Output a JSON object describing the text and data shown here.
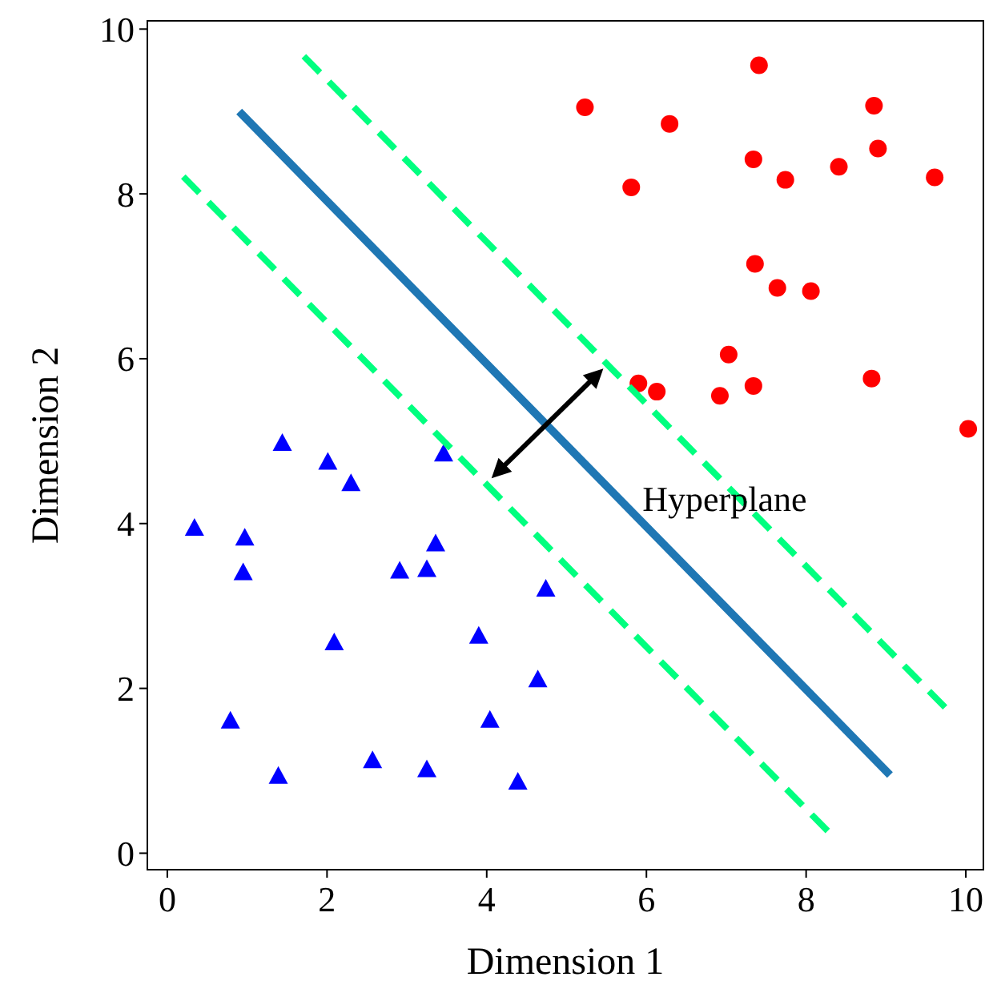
{
  "chart_data": {
    "type": "scatter",
    "xlabel": "Dimension 1",
    "ylabel": "Dimension 2",
    "xlim": [
      -0.25,
      10.22
    ],
    "ylim": [
      -0.2,
      10.1
    ],
    "xticks": [
      0,
      2,
      4,
      6,
      8,
      10
    ],
    "yticks": [
      0,
      2,
      4,
      6,
      8,
      10
    ],
    "grid": false,
    "annotations": [
      {
        "text": "Hyperplane",
        "x": 5.95,
        "y": 4.15
      }
    ],
    "series": [
      {
        "color": "#ff0000",
        "marker": "circle",
        "x": [
          7.41,
          5.23,
          8.85,
          6.29,
          7.34,
          8.9,
          7.74,
          8.41,
          9.61,
          5.81,
          7.36,
          7.64,
          8.06,
          7.03,
          5.9,
          6.13,
          6.92,
          7.34,
          8.82,
          10.03
        ],
        "values": [
          9.56,
          9.05,
          9.07,
          8.85,
          8.42,
          8.55,
          8.17,
          8.33,
          8.2,
          8.08,
          7.15,
          6.86,
          6.82,
          6.05,
          5.7,
          5.6,
          5.55,
          5.67,
          5.76,
          5.15
        ]
      },
      {
        "color": "#0000ff",
        "marker": "triangle",
        "x": [
          1.44,
          2.01,
          2.3,
          3.46,
          0.34,
          0.97,
          0.95,
          3.36,
          2.91,
          3.25,
          4.74,
          2.09,
          3.9,
          4.64,
          0.79,
          4.04,
          2.57,
          1.39,
          3.25,
          4.39
        ],
        "values": [
          4.97,
          4.74,
          4.48,
          4.84,
          3.94,
          3.82,
          3.4,
          3.75,
          3.42,
          3.44,
          3.2,
          2.55,
          2.63,
          2.1,
          1.6,
          1.61,
          1.12,
          0.93,
          1.01,
          0.86
        ]
      },
      {
        "type": "line",
        "color": "#1f77b4",
        "line_style": "solid",
        "marker": "none",
        "x": [
          0.9,
          9.05
        ],
        "values": [
          9.0,
          0.95
        ]
      },
      {
        "type": "line",
        "color": "#00ff7f",
        "line_style": "dashed",
        "marker": "none",
        "x": [
          1.71,
          9.74
        ],
        "values": [
          9.67,
          1.77
        ]
      },
      {
        "type": "line",
        "color": "#00ff7f",
        "line_style": "dashed",
        "marker": "none",
        "x": [
          0.2,
          8.27
        ],
        "values": [
          8.21,
          0.27
        ]
      }
    ]
  }
}
